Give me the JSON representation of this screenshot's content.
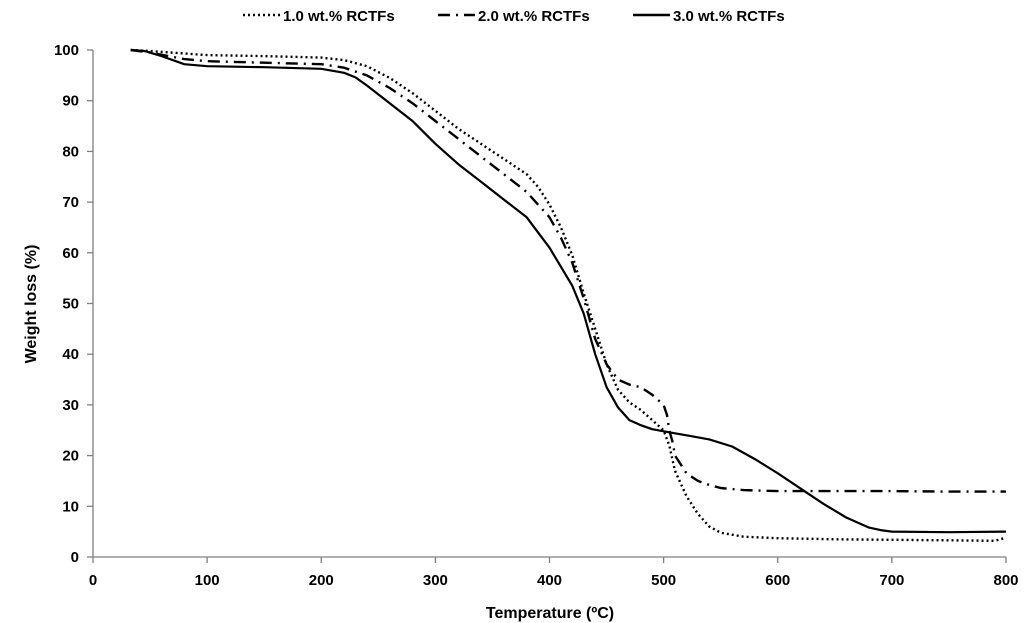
{
  "chart_data": {
    "type": "line",
    "xlabel": "Temperature (ºC)",
    "ylabel": "Weight loss (%)",
    "xlim": [
      0,
      800
    ],
    "ylim": [
      0,
      100
    ],
    "xticks": [
      0,
      100,
      200,
      300,
      400,
      500,
      600,
      700,
      800
    ],
    "yticks": [
      0,
      10,
      20,
      30,
      40,
      50,
      60,
      70,
      80,
      90,
      100
    ],
    "grid": false,
    "legend_position": "top",
    "series": [
      {
        "name": "1.0 wt.% RCTFs",
        "style": "dotted",
        "color": "#000000",
        "x": [
          33,
          50,
          80,
          100,
          150,
          200,
          220,
          240,
          260,
          280,
          300,
          320,
          340,
          360,
          380,
          390,
          400,
          410,
          420,
          430,
          440,
          450,
          460,
          470,
          480,
          490,
          500,
          505,
          510,
          520,
          530,
          540,
          550,
          570,
          600,
          650,
          700,
          750,
          790,
          800
        ],
        "y": [
          100,
          99.8,
          99.3,
          99,
          98.8,
          98.5,
          98,
          96.8,
          94.5,
          91.5,
          88,
          84.5,
          81.5,
          78.5,
          75.5,
          73,
          69.5,
          65,
          59.5,
          52,
          45,
          38,
          33,
          30.5,
          29,
          27,
          25,
          22,
          17,
          12,
          8.5,
          6,
          4.8,
          4,
          3.7,
          3.5,
          3.4,
          3.3,
          3.2,
          3.8
        ]
      },
      {
        "name": "2.0 wt.% RCTFs",
        "style": "dash-dot",
        "color": "#000000",
        "x": [
          33,
          50,
          80,
          100,
          150,
          200,
          220,
          240,
          260,
          280,
          300,
          320,
          340,
          360,
          380,
          400,
          410,
          420,
          430,
          440,
          450,
          460,
          470,
          480,
          490,
          500,
          503,
          505,
          508,
          510,
          520,
          530,
          540,
          550,
          570,
          600,
          650,
          700,
          750,
          800
        ],
        "y": [
          100,
          99.5,
          98.2,
          97.8,
          97.5,
          97.2,
          96.5,
          95,
          92.5,
          89.5,
          86,
          82.5,
          79,
          75.5,
          72,
          67,
          63,
          58,
          51,
          43,
          38,
          35,
          34,
          33.5,
          32,
          30,
          28,
          25,
          22.5,
          20,
          16.5,
          15,
          14.2,
          13.6,
          13.2,
          13,
          13,
          13,
          12.9,
          12.9
        ]
      },
      {
        "name": "3.0 wt.% RCTFs",
        "style": "solid",
        "color": "#000000",
        "x": [
          33,
          45,
          60,
          80,
          100,
          150,
          200,
          220,
          230,
          240,
          260,
          280,
          300,
          320,
          340,
          360,
          380,
          400,
          420,
          430,
          440,
          450,
          460,
          470,
          480,
          490,
          500,
          520,
          540,
          560,
          580,
          600,
          620,
          640,
          660,
          680,
          690,
          700,
          750,
          800
        ],
        "y": [
          100,
          99.8,
          98.8,
          97.2,
          96.8,
          96.6,
          96.3,
          95.5,
          94.6,
          93,
          89.5,
          86,
          81.5,
          77.5,
          74,
          70.5,
          67,
          61,
          53.5,
          48,
          40,
          33.5,
          29.5,
          27,
          26,
          25.2,
          24.8,
          24,
          23.2,
          21.8,
          19.3,
          16.5,
          13.5,
          10.5,
          7.8,
          5.8,
          5.3,
          5,
          4.9,
          5
        ]
      }
    ]
  }
}
